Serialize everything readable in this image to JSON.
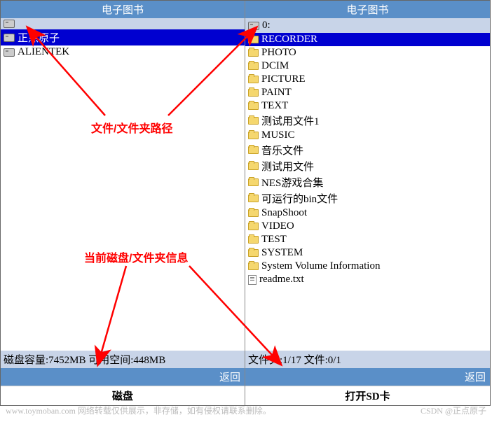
{
  "left": {
    "title": "电子图书",
    "path": "",
    "items": [
      {
        "type": "disk",
        "name": "正点原子",
        "selected": true
      },
      {
        "type": "disk",
        "name": "ALIENTEK",
        "selected": false
      }
    ],
    "status": "磁盘容量:7452MB 可用空间:448MB",
    "return_label": "返回",
    "caption": "磁盘"
  },
  "right": {
    "title": "电子图书",
    "path": "0:",
    "items": [
      {
        "type": "folder",
        "name": "RECORDER",
        "selected": true
      },
      {
        "type": "folder",
        "name": "PHOTO"
      },
      {
        "type": "folder",
        "name": "DCIM"
      },
      {
        "type": "folder",
        "name": "PICTURE"
      },
      {
        "type": "folder",
        "name": "PAINT"
      },
      {
        "type": "folder",
        "name": "TEXT"
      },
      {
        "type": "folder",
        "name": "测试用文件1"
      },
      {
        "type": "folder",
        "name": "MUSIC"
      },
      {
        "type": "folder",
        "name": "音乐文件"
      },
      {
        "type": "folder",
        "name": "测试用文件"
      },
      {
        "type": "folder",
        "name": "NES游戏合集"
      },
      {
        "type": "folder",
        "name": "可运行的bin文件"
      },
      {
        "type": "folder",
        "name": "SnapShoot"
      },
      {
        "type": "folder",
        "name": "VIDEO"
      },
      {
        "type": "folder",
        "name": "TEST"
      },
      {
        "type": "folder",
        "name": "SYSTEM"
      },
      {
        "type": "folder",
        "name": "System Volume Information"
      },
      {
        "type": "file",
        "name": "readme.txt"
      }
    ],
    "status": "文件夹:1/17  文件:0/1",
    "return_label": "返回",
    "caption": "打开SD卡"
  },
  "annotations": {
    "label1": "文件/文件夹路径",
    "label2": "当前磁盘/文件夹信息",
    "arrow_color": "#ff0000"
  },
  "watermarks": {
    "left": "www.toymoban.com 网络转载仅供展示，非存储，如有侵权请联系删除。",
    "right": "CSDN @正点原子"
  },
  "colors": {
    "titlebar": "#5a8fc8",
    "pathbar": "#c8d4e8",
    "selected": "#0000d0",
    "anno": "#ff0000"
  }
}
